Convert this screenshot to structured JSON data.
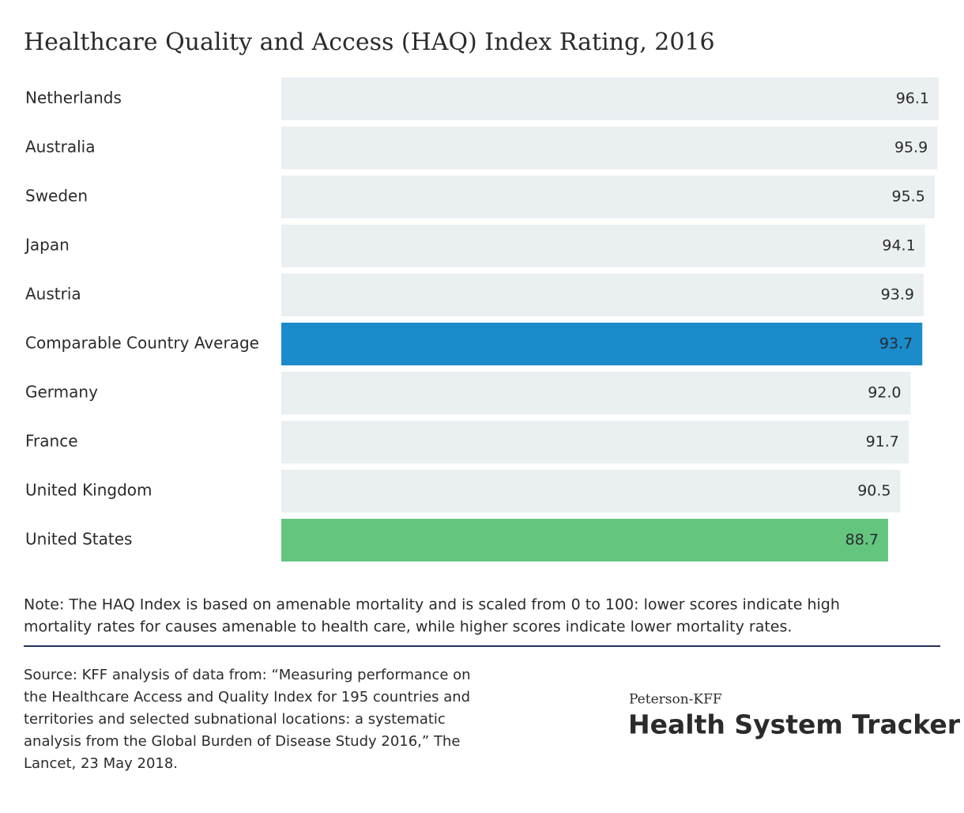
{
  "chart_data": {
    "type": "bar",
    "orientation": "horizontal",
    "title": "Healthcare Quality and Access (HAQ) Index Rating, 2016",
    "categories": [
      "Netherlands",
      "Australia",
      "Sweden",
      "Japan",
      "Austria",
      "Comparable Country Average",
      "Germany",
      "France",
      "United Kingdom",
      "United States"
    ],
    "values": [
      96.1,
      95.9,
      95.5,
      94.1,
      93.9,
      93.7,
      92.0,
      91.7,
      90.5,
      88.7
    ],
    "value_labels": [
      "96.1",
      "95.9",
      "95.5",
      "94.1",
      "93.9",
      "93.7",
      "92.0",
      "91.7",
      "90.5",
      "88.7"
    ],
    "colors": [
      "#eaeff2",
      "#eaeff2",
      "#eaeff2",
      "#eaeff2",
      "#eaeff2",
      "#1a8bcb",
      "#eaeff2",
      "#eaeff2",
      "#eaeff2",
      "#64c57f"
    ],
    "xlim": [
      0,
      96.1
    ],
    "note": [
      "Note: The HAQ Index is based on amenable mortality and is scaled from 0 to 100: lower scores indicate high",
      "mortality rates for causes amenable to health care, while higher scores indicate lower mortality rates."
    ],
    "source": [
      "Source: KFF analysis of data from: “Measuring performance on",
      "the Healthcare Access and Quality Index for 195 countries and",
      "territories and selected subnational locations: a systematic",
      "analysis from the Global Burden of Disease Study 2016,” The",
      "Lancet, 23 May 2018."
    ],
    "brand_small": "Peterson-KFF",
    "brand_large": "Health System Tracker"
  }
}
